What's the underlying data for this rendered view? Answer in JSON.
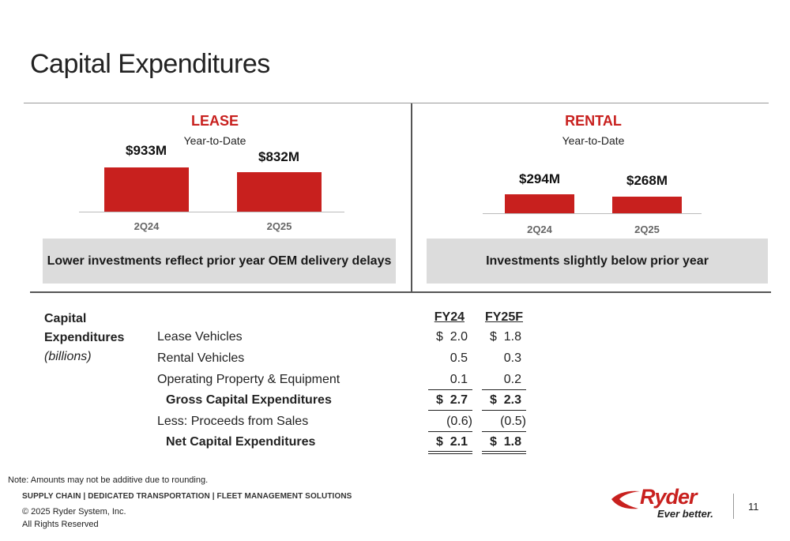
{
  "page": {
    "title": "Capital Expenditures",
    "page_number": "11"
  },
  "lease": {
    "heading": "LEASE",
    "subheading": "Year-to-Date",
    "bars": [
      {
        "period": "2Q24",
        "label": "$933M",
        "value": 933
      },
      {
        "period": "2Q25",
        "label": "$832M",
        "value": 832
      }
    ],
    "banner": "Lower investments reflect prior year OEM delivery delays"
  },
  "rental": {
    "heading": "RENTAL",
    "subheading": "Year-to-Date",
    "bars": [
      {
        "period": "2Q24",
        "label": "$294M",
        "value": 294
      },
      {
        "period": "2Q25",
        "label": "$268M",
        "value": 268
      }
    ],
    "banner": "Investments slightly below prior year"
  },
  "chart_data": [
    {
      "type": "bar",
      "title": "LEASE",
      "subtitle": "Year-to-Date",
      "categories": [
        "2Q24",
        "2Q25"
      ],
      "values": [
        933,
        832
      ],
      "unit": "$M",
      "data_labels": [
        "$933M",
        "$832M"
      ]
    },
    {
      "type": "bar",
      "title": "RENTAL",
      "subtitle": "Year-to-Date",
      "categories": [
        "2Q24",
        "2Q25"
      ],
      "values": [
        294,
        268
      ],
      "unit": "$M",
      "data_labels": [
        "$294M",
        "$268M"
      ]
    }
  ],
  "capex_table": {
    "side_label_line1": "Capital",
    "side_label_line2": "Expenditures",
    "side_label_line3": "(billions)",
    "columns": [
      "FY24",
      "FY25F"
    ],
    "rows": [
      {
        "label": "Lease Vehicles",
        "fy24": "2.0",
        "fy25f": "1.8",
        "dollar": true,
        "bold": false
      },
      {
        "label": "Rental Vehicles",
        "fy24": "0.5",
        "fy25f": "0.3",
        "dollar": false,
        "bold": false
      },
      {
        "label": "Operating Property & Equipment",
        "fy24": "0.1",
        "fy25f": "0.2",
        "dollar": false,
        "bold": false
      },
      {
        "label": "Gross Capital Expenditures",
        "fy24": "2.7",
        "fy25f": "2.3",
        "dollar": true,
        "bold": true
      },
      {
        "label": "Less: Proceeds from Sales",
        "fy24": "(0.6)",
        "fy25f": "(0.5)",
        "dollar": false,
        "bold": false
      },
      {
        "label": "Net Capital Expenditures",
        "fy24": "2.1",
        "fy25f": "1.8",
        "dollar": true,
        "bold": true
      }
    ],
    "currency_symbol": "$"
  },
  "footer": {
    "note": "Note: Amounts may not be additive due to rounding.",
    "tagline": "SUPPLY CHAIN | DEDICATED TRANSPORTATION | FLEET MANAGEMENT SOLUTIONS",
    "copyright": "© 2025 Ryder System, Inc.",
    "rights": "All Rights Reserved",
    "logo_name": "Ryder",
    "logo_tagline": "Ever better."
  },
  "colors": {
    "accent": "#c8201e",
    "banner_bg": "#dcdcdc",
    "rule": "#9a9a9a"
  }
}
